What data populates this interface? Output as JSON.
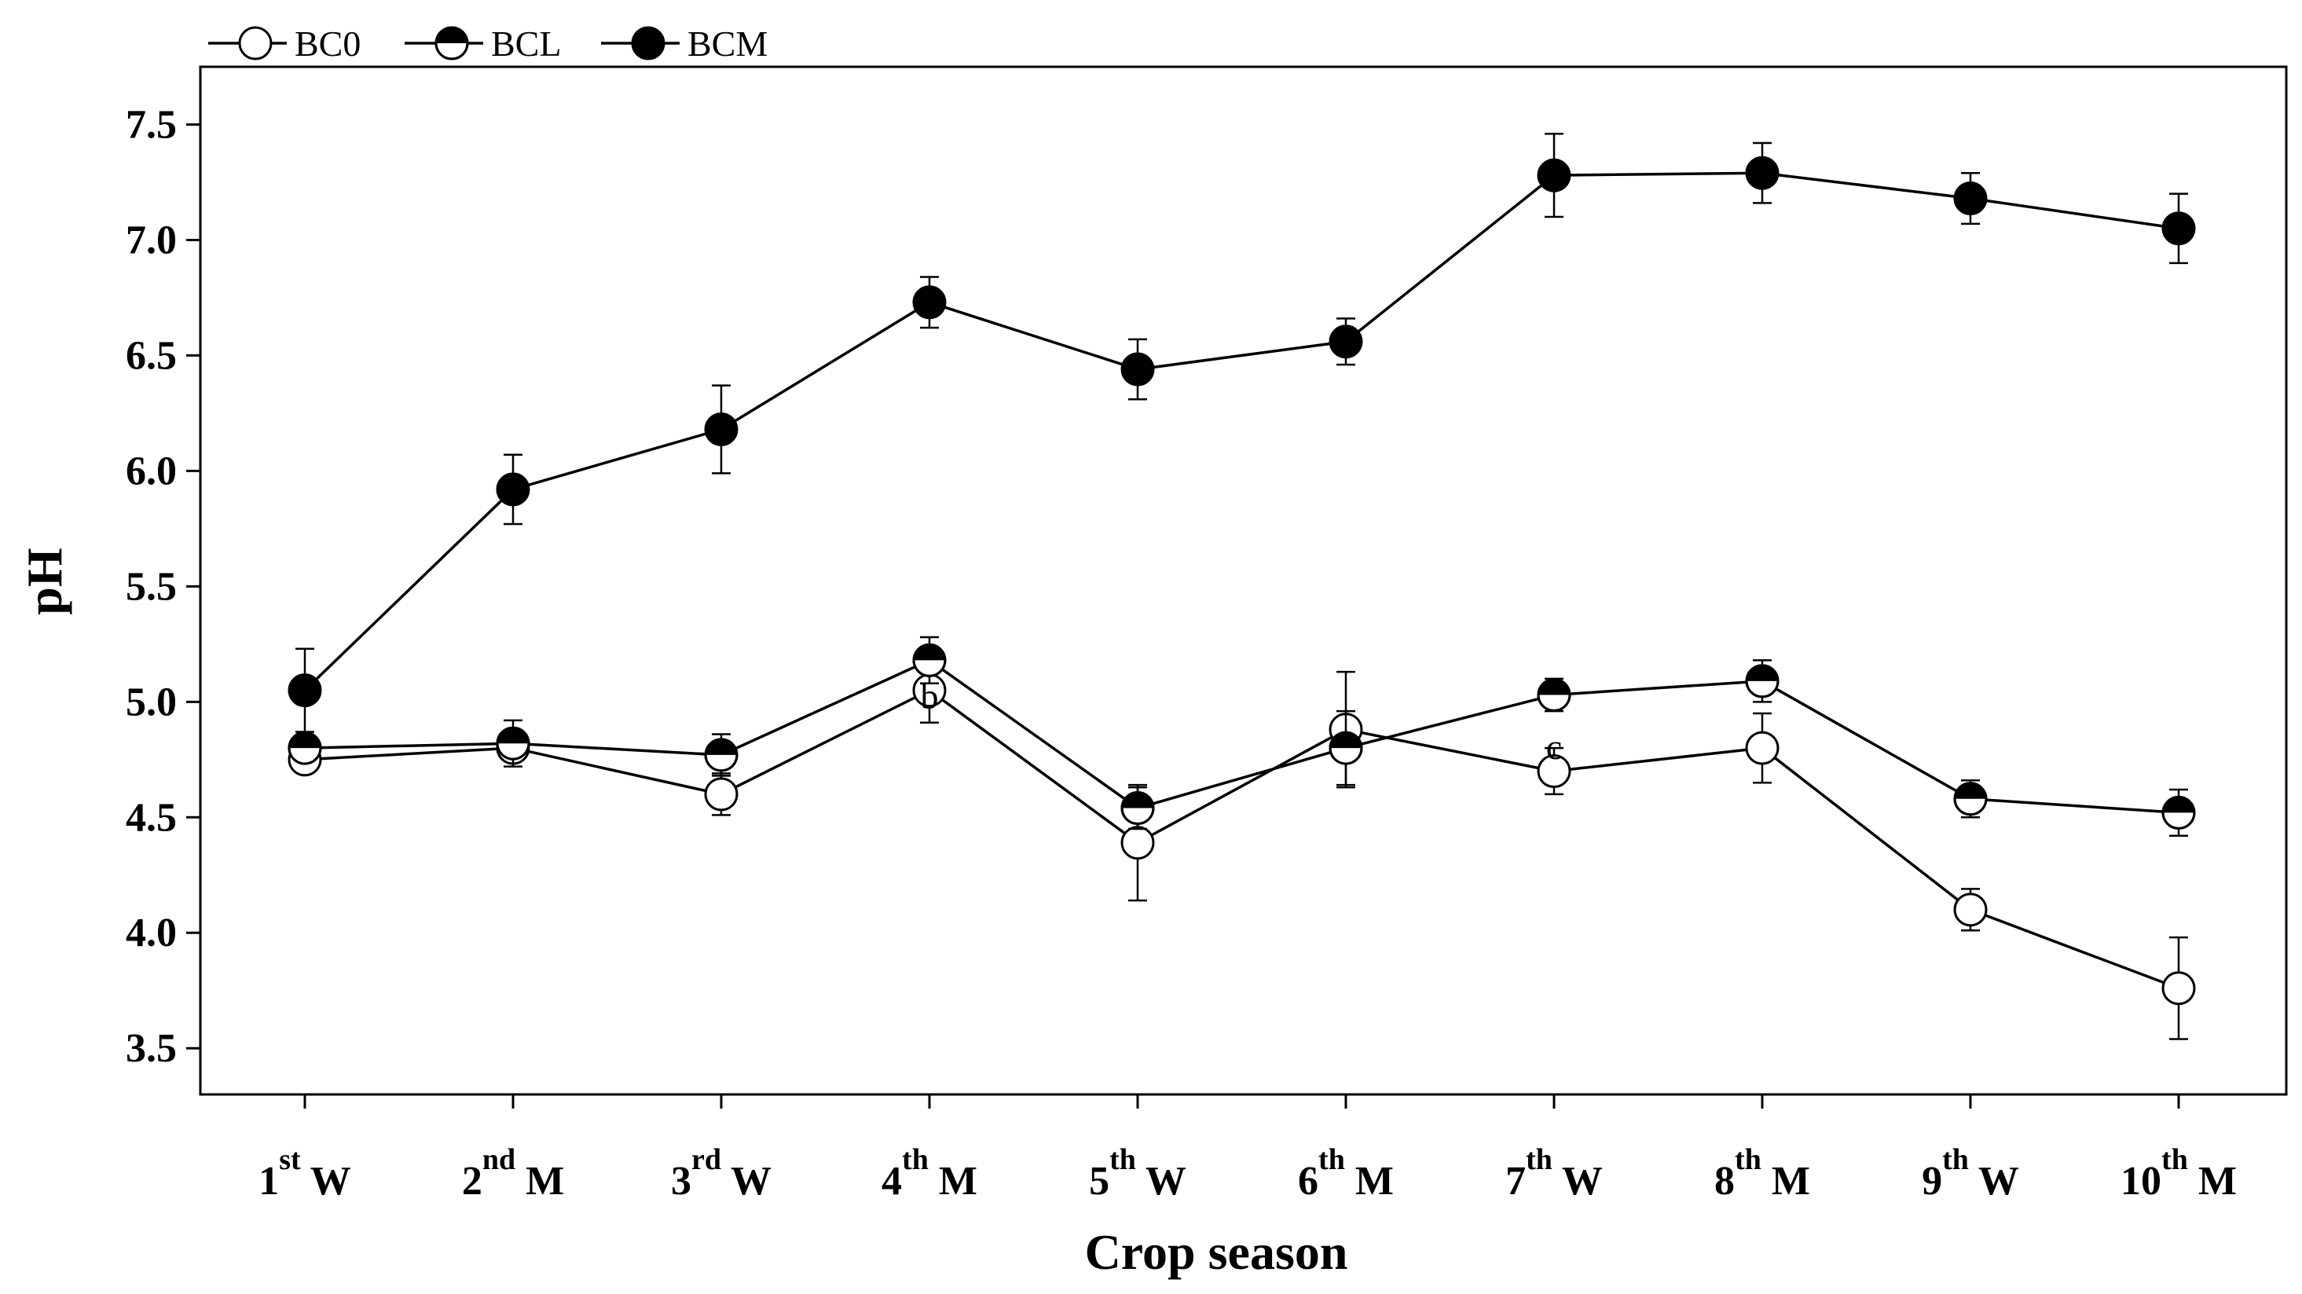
{
  "chart_data": {
    "type": "line",
    "title": "",
    "xlabel": "Crop season",
    "ylabel": "pH",
    "ylim": [
      3.3,
      7.75
    ],
    "yticks": [
      3.5,
      4.0,
      4.5,
      5.0,
      5.5,
      6.0,
      6.5,
      7.0,
      7.5
    ],
    "ytick_labels": [
      "3.5",
      "4.0",
      "4.5",
      "5.0",
      "5.5",
      "6.0",
      "6.5",
      "7.0",
      "7.5"
    ],
    "grid": false,
    "legend_position": "top-left, above plot",
    "categories": [
      {
        "num": "1",
        "sup": "st",
        "season": "W"
      },
      {
        "num": "2",
        "sup": "nd",
        "season": "M"
      },
      {
        "num": "3",
        "sup": "rd",
        "season": "W"
      },
      {
        "num": "4",
        "sup": "th",
        "season": "M"
      },
      {
        "num": "5",
        "sup": "th",
        "season": "W"
      },
      {
        "num": "6",
        "sup": "th",
        "season": "M"
      },
      {
        "num": "7",
        "sup": "th",
        "season": "W"
      },
      {
        "num": "8",
        "sup": "th",
        "season": "M"
      },
      {
        "num": "9",
        "sup": "th",
        "season": "W"
      },
      {
        "num": "10",
        "sup": "th",
        "season": "M"
      }
    ],
    "series": [
      {
        "name": "BC0",
        "marker": "open-circle",
        "values": [
          4.75,
          4.8,
          4.6,
          5.05,
          4.39,
          4.88,
          4.7,
          4.8,
          4.1,
          3.76
        ],
        "errors": [
          0.04,
          0.04,
          0.09,
          0.14,
          0.25,
          0.25,
          0.1,
          0.15,
          0.09,
          0.22
        ]
      },
      {
        "name": "BCL",
        "marker": "half-filled-circle",
        "values": [
          4.8,
          4.82,
          4.77,
          5.18,
          4.54,
          4.8,
          5.03,
          5.09,
          4.58,
          4.52
        ],
        "errors": [
          0.04,
          0.1,
          0.09,
          0.1,
          0.09,
          0.16,
          0.07,
          0.09,
          0.08,
          0.1
        ]
      },
      {
        "name": "BCM",
        "marker": "filled-circle",
        "values": [
          5.05,
          5.92,
          6.18,
          6.73,
          6.44,
          6.56,
          7.28,
          7.29,
          7.18,
          7.05
        ],
        "errors": [
          0.18,
          0.15,
          0.19,
          0.11,
          0.13,
          0.1,
          0.18,
          0.13,
          0.11,
          0.15
        ]
      }
    ],
    "annotations": [
      {
        "text": "b",
        "category_index": 3,
        "y": 5.02
      },
      {
        "text": "c",
        "category_index": 6,
        "y": 4.8
      }
    ],
    "colors": {
      "line": "#000000",
      "open_fill": "#ffffff",
      "solid_fill": "#000000",
      "background": "#ffffff"
    }
  }
}
